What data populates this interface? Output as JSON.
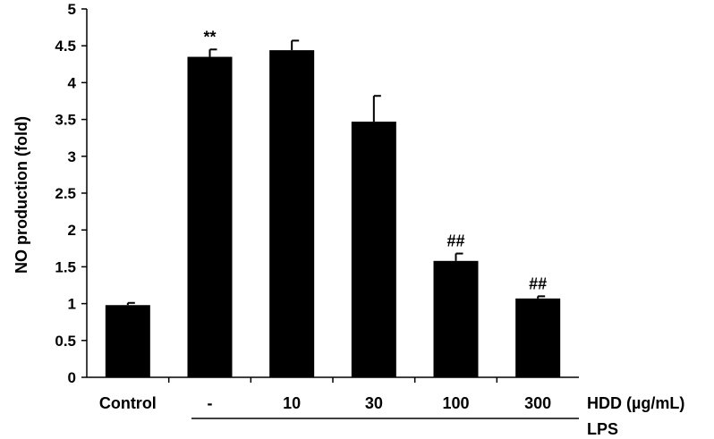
{
  "chart_data": {
    "type": "bar",
    "ylabel": "NO production (fold)",
    "ylim": [
      0,
      5
    ],
    "yticks": [
      "0",
      "0.5",
      "1",
      "1.5",
      "2",
      "2.5",
      "3",
      "3.5",
      "4",
      "4.5",
      "5"
    ],
    "categories": [
      "Control",
      "-",
      "10",
      "30",
      "100",
      "300"
    ],
    "values": [
      0.98,
      4.35,
      4.44,
      3.47,
      1.58,
      1.07
    ],
    "errors": [
      0.03,
      0.1,
      0.13,
      0.35,
      0.1,
      0.03
    ],
    "annotations": [
      "",
      "**",
      "",
      "",
      "##",
      "##"
    ],
    "x_suffix_label": "HDD (µg/mL)",
    "group_label": "LPS",
    "bar_color": "#000000",
    "grid": false,
    "legend": "none"
  }
}
